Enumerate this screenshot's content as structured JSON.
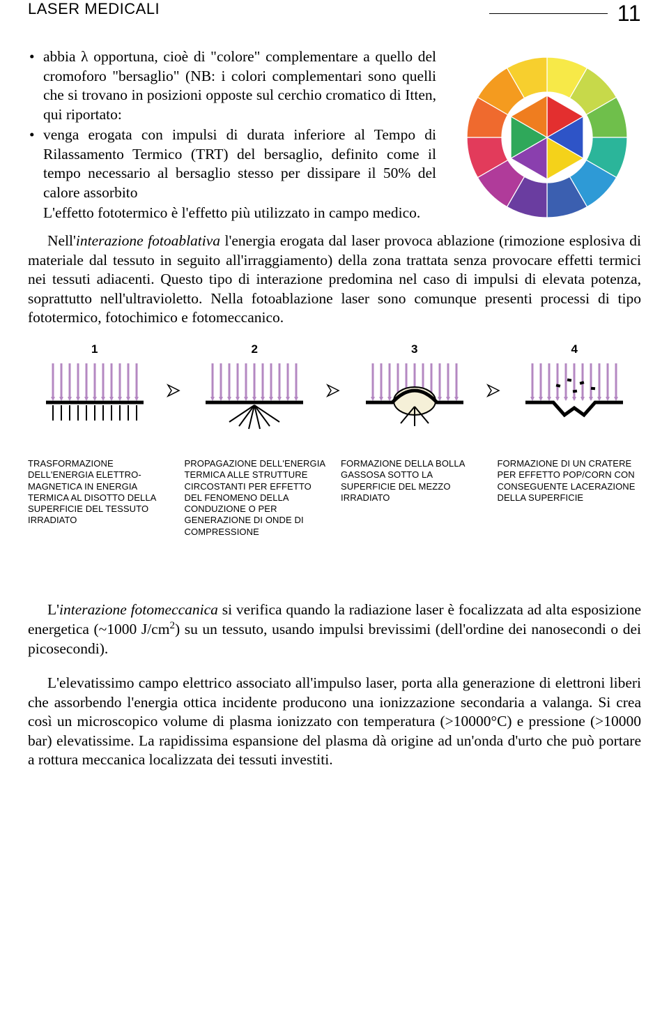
{
  "header": {
    "title": "LASER MEDICALI",
    "page_number": "11"
  },
  "bullets": {
    "item1": "abbia λ opportuna, cioè di \"colore\" complementare a quello del cromoforo \"bersaglio\" (NB: i colori complementari sono quelli che si trovano in posizioni opposte sul cerchio cromatico di Itten, qui riportato:",
    "item2": "venga erogata con impulsi di durata inferiore al Tempo di Rilassamento Termico (TRT) del bersaglio, definito come il tempo necessario al bersaglio stesso per dissipare il 50% del calore assorbito",
    "tail": "L'effetto fototermico è l'effetto più utilizzato in campo medico."
  },
  "color_wheel": {
    "segments": [
      "#f7e948",
      "#c7d94a",
      "#6fbf4b",
      "#2bb59a",
      "#2e9ad6",
      "#3b5fb0",
      "#6a3da0",
      "#b03b9a",
      "#e23b5b",
      "#ef6a2e",
      "#f49b1f",
      "#f7cf2e"
    ],
    "inner_triangles": [
      "#e32f2f",
      "#2e54c7",
      "#f4d21a",
      "#8a3fae",
      "#2fa85a",
      "#ef7d1f"
    ],
    "bg": "#ffffff"
  },
  "para1_pre": "Nell'",
  "para1_em": "interazione fotoablativa",
  "para1_post": " l'energia erogata dal laser provoca ablazione (rimozione esplosiva di materiale dal tessuto in seguito all'irraggiamento) della zona trattata senza provocare effetti termici nei tessuti adiacenti. Questo tipo di interazione predomina nel caso di impulsi di elevata potenza, soprattutto nell'ultravioletto. Nella fotoablazione laser sono comunque presenti processi di tipo fototermico, fotochimico e fotomeccanico.",
  "diagram": {
    "numbers": [
      "1",
      "2",
      "3",
      "4"
    ],
    "ray_color": "#b488c2",
    "line_color": "#000000",
    "bubble_fill": "#f5f0d8",
    "captions": [
      "TRASFORMAZIONE DELL'ENERGIA ELETTRO-MAGNETICA IN ENERGIA TERMICA AL DISOTTO DELLA SUPERFICIE DEL TESSUTO IRRADIATO",
      "PROPAGAZIONE DELL'ENERGIA TERMICA ALLE STRUTTURE CIRCOSTANTI PER EFFETTO DEL FENOMENO DELLA CONDUZIONE O PER GENERAZIONE DI ONDE DI COMPRESSIONE",
      "FORMAZIONE DELLA BOLLA GASSOSA SOTTO LA SUPERFICIE DEL MEZZO IRRADIATO",
      "FORMAZIONE DI UN CRATERE PER EFFETTO POP/CORN CON CONSEGUENTE LACERAZIONE DELLA SUPERFICIE"
    ]
  },
  "para2_pre": "L'",
  "para2_em": "interazione fotomeccanica",
  "para2_post_a": " si verifica quando la radiazione laser è focalizzata ad alta esposizione energetica (~1000 J/cm",
  "para2_sup": "2",
  "para2_post_b": ") su un tessuto, usando impulsi brevissimi (dell'ordine dei nanosecondi o dei picosecondi).",
  "para3": "L'elevatissimo campo elettrico associato all'impulso laser, porta alla generazione di elettroni  liberi che assorbendo l'energia ottica incidente producono una ionizzazione secondaria a valanga. Si crea così un microscopico volume di plasma ionizzato con temperatura (>10000°C) e pressione (>10000 bar) elevatissime. La rapidissima espansione del plasma dà origine ad un'onda d'urto che può portare a rottura meccanica localizzata dei tessuti investiti."
}
